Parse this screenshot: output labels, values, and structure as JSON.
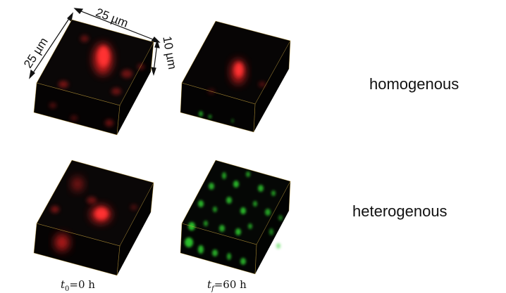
{
  "dimensions": {
    "width_label": "25 µm",
    "depth_label": "25 µm",
    "height_label": "10 µm"
  },
  "rows": [
    {
      "label": "homogenous"
    },
    {
      "label": "heterogenous"
    }
  ],
  "time_labels": {
    "start": {
      "var": "t",
      "sub": "0",
      "rest": "=0 h"
    },
    "end": {
      "var": "t",
      "sub": "f",
      "rest": "=60 h"
    }
  },
  "colors": {
    "red_channel": "#e02020",
    "green_channel": "#2ed02e",
    "box_edge": "#c8a030",
    "box_face": "#050505"
  }
}
